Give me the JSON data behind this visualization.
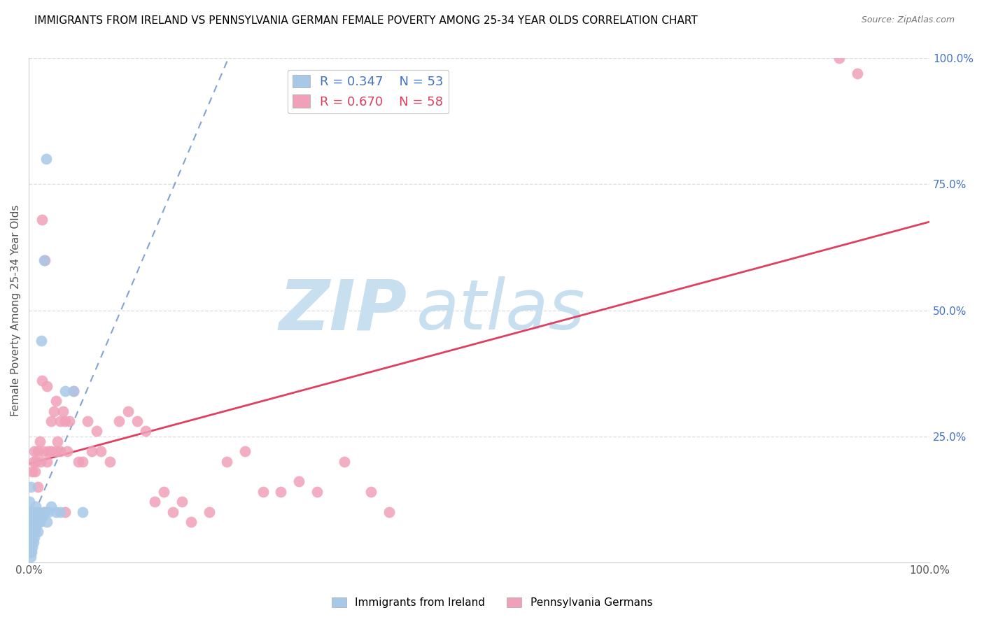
{
  "title": "IMMIGRANTS FROM IRELAND VS PENNSYLVANIA GERMAN FEMALE POVERTY AMONG 25-34 YEAR OLDS CORRELATION CHART",
  "source": "Source: ZipAtlas.com",
  "ylabel": "Female Poverty Among 25-34 Year Olds",
  "legend_r1": "R = 0.347",
  "legend_n1": "N = 53",
  "legend_r2": "R = 0.670",
  "legend_n2": "N = 58",
  "color_ireland": "#a8c8e8",
  "color_pa_german": "#f0a0b8",
  "color_ireland_line": "#7799cc",
  "color_pa_german_line": "#e04060",
  "watermark_zip": "ZIP",
  "watermark_atlas": "atlas",
  "watermark_color": "#c8dff0",
  "legend_label1": "Immigrants from Ireland",
  "legend_label2": "Pennsylvania Germans",
  "ireland_x": [
    0.001,
    0.001,
    0.001,
    0.001,
    0.001,
    0.001,
    0.001,
    0.001,
    0.001,
    0.001,
    0.002,
    0.002,
    0.002,
    0.002,
    0.002,
    0.002,
    0.002,
    0.003,
    0.003,
    0.003,
    0.003,
    0.004,
    0.004,
    0.004,
    0.005,
    0.005,
    0.005,
    0.006,
    0.006,
    0.007,
    0.007,
    0.008,
    0.008,
    0.009,
    0.01,
    0.01,
    0.011,
    0.012,
    0.013,
    0.015,
    0.016,
    0.018,
    0.02,
    0.022,
    0.025,
    0.03,
    0.035,
    0.04,
    0.05,
    0.06,
    0.014,
    0.017,
    0.019
  ],
  "ireland_y": [
    0.02,
    0.03,
    0.04,
    0.05,
    0.06,
    0.07,
    0.08,
    0.09,
    0.1,
    0.12,
    0.01,
    0.02,
    0.04,
    0.06,
    0.08,
    0.1,
    0.15,
    0.02,
    0.04,
    0.06,
    0.08,
    0.03,
    0.06,
    0.1,
    0.04,
    0.06,
    0.09,
    0.05,
    0.08,
    0.06,
    0.1,
    0.07,
    0.11,
    0.08,
    0.06,
    0.1,
    0.08,
    0.08,
    0.09,
    0.09,
    0.1,
    0.1,
    0.08,
    0.1,
    0.11,
    0.1,
    0.1,
    0.34,
    0.34,
    0.1,
    0.44,
    0.6,
    0.8
  ],
  "pa_x": [
    0.004,
    0.005,
    0.006,
    0.007,
    0.008,
    0.01,
    0.01,
    0.012,
    0.013,
    0.015,
    0.016,
    0.018,
    0.02,
    0.022,
    0.025,
    0.028,
    0.03,
    0.032,
    0.035,
    0.038,
    0.04,
    0.043,
    0.045,
    0.05,
    0.055,
    0.06,
    0.065,
    0.07,
    0.075,
    0.08,
    0.09,
    0.1,
    0.11,
    0.12,
    0.13,
    0.14,
    0.15,
    0.16,
    0.17,
    0.18,
    0.2,
    0.22,
    0.24,
    0.26,
    0.28,
    0.3,
    0.32,
    0.35,
    0.38,
    0.4,
    0.015,
    0.02,
    0.025,
    0.03,
    0.035,
    0.04,
    0.9,
    0.92
  ],
  "pa_y": [
    0.18,
    0.2,
    0.22,
    0.18,
    0.2,
    0.15,
    0.22,
    0.24,
    0.2,
    0.68,
    0.22,
    0.6,
    0.2,
    0.22,
    0.28,
    0.3,
    0.22,
    0.24,
    0.28,
    0.3,
    0.28,
    0.22,
    0.28,
    0.34,
    0.2,
    0.2,
    0.28,
    0.22,
    0.26,
    0.22,
    0.2,
    0.28,
    0.3,
    0.28,
    0.26,
    0.12,
    0.14,
    0.1,
    0.12,
    0.08,
    0.1,
    0.2,
    0.22,
    0.14,
    0.14,
    0.16,
    0.14,
    0.2,
    0.14,
    0.1,
    0.36,
    0.35,
    0.22,
    0.32,
    0.22,
    0.1,
    1.0,
    0.97
  ],
  "xlim": [
    0.0,
    1.0
  ],
  "ylim": [
    0.0,
    1.0
  ],
  "right_yticks": [
    0.25,
    0.5,
    0.75,
    1.0
  ],
  "right_yticklabels": [
    "25.0%",
    "50.0%",
    "75.0%",
    "100.0%"
  ],
  "right_axis_color": "#4472c4",
  "grid_color": "#dddddd",
  "title_fontsize": 11,
  "source_fontsize": 9
}
